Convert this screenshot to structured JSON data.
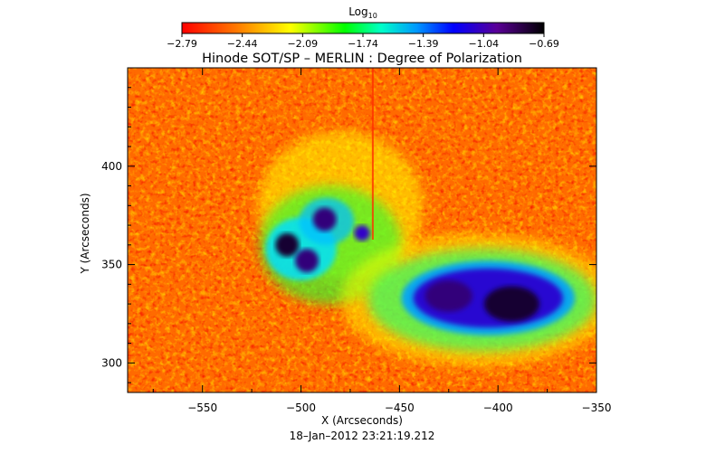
{
  "chart_data": {
    "type": "heatmap",
    "title": "Hinode SOT/SP – MERLIN : Degree of Polarization",
    "xlabel": "X (Arcseconds)",
    "ylabel": "Y (Arcseconds)",
    "timestamp": "18–Jan–2012 23:21:19.212",
    "xlim": [
      -588,
      -350
    ],
    "ylim": [
      285,
      450
    ],
    "x_ticks": [
      -550,
      -500,
      -450,
      -400,
      -350
    ],
    "x_tick_labels": [
      "−550",
      "−500",
      "−450",
      "−400",
      "−350"
    ],
    "y_ticks": [
      300,
      350,
      400
    ],
    "y_tick_labels": [
      "300",
      "350",
      "400"
    ],
    "scan_seam_x": -464,
    "colorbar": {
      "title_main": "Log",
      "title_sub": "10",
      "range": [
        -2.79,
        -0.69
      ],
      "colormap": "rainbow-red-to-black",
      "tick_labels": [
        "−2.79",
        "−2.44",
        "−2.09",
        "−1.74",
        "−1.39",
        "−1.04",
        "−0.69"
      ]
    },
    "features": [
      {
        "name": "sunspot-east-1",
        "x": -507,
        "y": 360,
        "value": -0.75
      },
      {
        "name": "sunspot-east-2",
        "x": -488,
        "y": 373,
        "value": -0.8
      },
      {
        "name": "sunspot-east-3",
        "x": -497,
        "y": 352,
        "value": -0.8
      },
      {
        "name": "pore-east",
        "x": -469,
        "y": 366,
        "value": -1.0
      },
      {
        "name": "sunspot-west-umbra",
        "x": -393,
        "y": 330,
        "value": -0.72
      },
      {
        "name": "sunspot-west-secondary",
        "x": -425,
        "y": 334,
        "value": -0.85
      }
    ]
  }
}
